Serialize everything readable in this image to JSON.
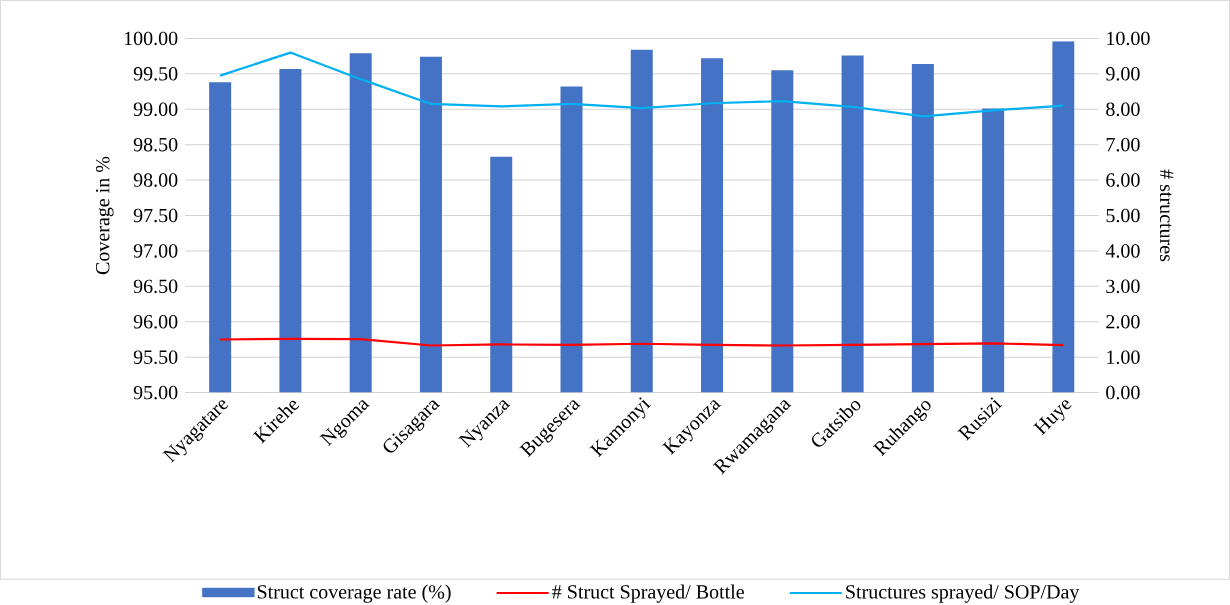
{
  "chart_data": {
    "type": "bar",
    "ylabel": "Coverage in %",
    "y2label": "# structures",
    "categories": [
      "Nyagatare",
      "Kirehe",
      "Ngoma",
      "Gisagara",
      "Nyanza",
      "Bugesera",
      "Kamonyi",
      "Kayonza",
      "Rwamagana",
      "Gatsibo",
      "Ruhango",
      "Rusizi",
      "Huye"
    ],
    "series": [
      {
        "name": "Struct coverage rate (%)",
        "color": "#4472c4",
        "values": [
          99.38,
          99.57,
          99.79,
          99.74,
          98.33,
          99.32,
          99.84,
          99.72,
          99.55,
          99.76,
          99.64,
          99.01,
          99.96
        ]
      },
      {
        "name": "# Struct Sprayed/ Bottle",
        "type": "line",
        "axis": "y2",
        "color": "#ff0000",
        "values": [
          1.5,
          1.52,
          1.51,
          1.33,
          1.36,
          1.35,
          1.38,
          1.35,
          1.33,
          1.35,
          1.37,
          1.39,
          1.34
        ]
      },
      {
        "name": "Structures sprayed/ SOP/Day",
        "type": "line",
        "axis": "y2",
        "color": "#00b0f0",
        "values": [
          8.95,
          9.6,
          8.85,
          8.15,
          8.08,
          8.15,
          8.03,
          8.17,
          8.23,
          8.07,
          7.8,
          7.97,
          8.1
        ]
      }
    ],
    "ylim": [
      95,
      100
    ],
    "yticks": [
      {
        "value": 95,
        "label": "95.00"
      },
      {
        "value": 95.5,
        "label": "95.50"
      },
      {
        "value": 96,
        "label": "96.00"
      },
      {
        "value": 96.5,
        "label": "96.50"
      },
      {
        "value": 97,
        "label": "97.00"
      },
      {
        "value": 97.5,
        "label": "97.50"
      },
      {
        "value": 98,
        "label": "98.00"
      },
      {
        "value": 98.5,
        "label": "98.50"
      },
      {
        "value": 99,
        "label": "99.00"
      },
      {
        "value": 99.5,
        "label": "99.50"
      },
      {
        "value": 100,
        "label": "100.00"
      }
    ],
    "y2lim": [
      0,
      10
    ],
    "y2ticks": [
      {
        "value": 0,
        "label": "0.00"
      },
      {
        "value": 1,
        "label": "1.00"
      },
      {
        "value": 2,
        "label": "2.00"
      },
      {
        "value": 3,
        "label": "3.00"
      },
      {
        "value": 4,
        "label": "4.00"
      },
      {
        "value": 5,
        "label": "5.00"
      },
      {
        "value": 6,
        "label": "6.00"
      },
      {
        "value": 7,
        "label": "7.00"
      },
      {
        "value": 8,
        "label": "8.00"
      },
      {
        "value": 9,
        "label": "9.00"
      },
      {
        "value": 10,
        "label": "10.00"
      }
    ],
    "grid": "y",
    "legend": "bottom"
  }
}
